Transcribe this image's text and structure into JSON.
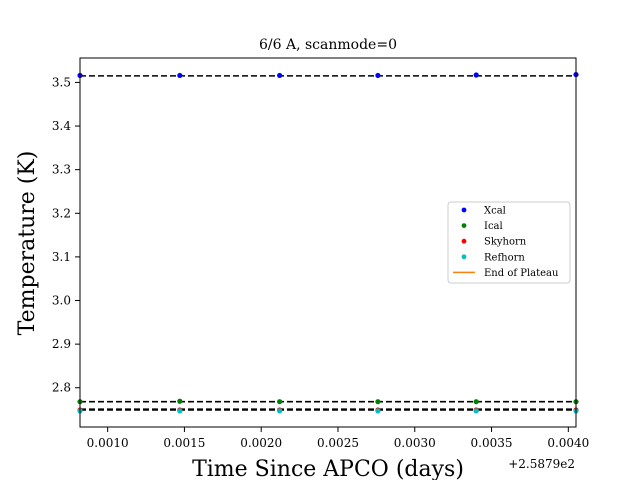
{
  "chart_data": {
    "type": "scatter",
    "title": "6/6 A, scanmode=0",
    "xlabel": "Time Since APCO (days)",
    "ylabel": "Temperature (K)",
    "x_offset_label": "+2.5879e2",
    "xlim": [
      0.00082,
      0.00405
    ],
    "ylim": [
      2.71,
      3.556
    ],
    "x_ticks": [
      0.001,
      0.0015,
      0.002,
      0.0025,
      0.003,
      0.0035,
      0.004
    ],
    "x_tick_labels": [
      "0.0010",
      "0.0015",
      "0.0020",
      "0.0025",
      "0.0030",
      "0.0035",
      "0.0040"
    ],
    "y_ticks": [
      2.8,
      2.9,
      3.0,
      3.1,
      3.2,
      3.3,
      3.4,
      3.5
    ],
    "y_tick_labels": [
      "2.8",
      "2.9",
      "3.0",
      "3.1",
      "3.2",
      "3.3",
      "3.4",
      "3.5"
    ],
    "x": [
      0.00082,
      0.00147,
      0.00212,
      0.00276,
      0.0034,
      0.00405
    ],
    "series": [
      {
        "name": "Xcal",
        "color": "#0000ff",
        "values": [
          3.516,
          3.516,
          3.516,
          3.516,
          3.517,
          3.518
        ]
      },
      {
        "name": "Ical",
        "color": "#008000",
        "values": [
          2.768,
          2.769,
          2.768,
          2.768,
          2.768,
          2.768
        ]
      },
      {
        "name": "Skyhorn",
        "color": "#ff0000",
        "values": [
          2.749,
          2.749,
          2.749,
          2.749,
          2.749,
          2.749
        ]
      },
      {
        "name": "Refhorn",
        "color": "#00bfbf",
        "values": [
          2.747,
          2.747,
          2.747,
          2.747,
          2.747,
          2.747
        ]
      }
    ],
    "reference_lines": [
      3.515,
      2.768,
      2.751,
      2.749
    ],
    "end_of_plateau_label": "End of Plateau",
    "end_of_plateau_color": "#ff7f0e",
    "legend_position": "center-right"
  }
}
